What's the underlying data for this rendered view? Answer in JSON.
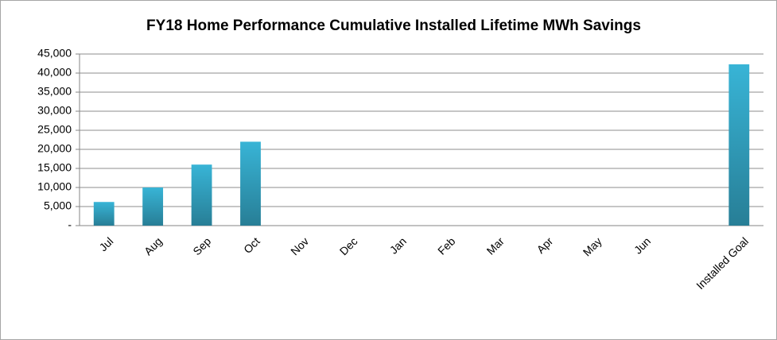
{
  "chart_data": {
    "type": "bar",
    "title": "FY18 Home Performance Cumulative Installed Lifetime MWh Savings",
    "categories": [
      "Jul",
      "Aug",
      "Sep",
      "Oct",
      "Nov",
      "Dec",
      "Jan",
      "Feb",
      "Mar",
      "Apr",
      "May",
      "Jun",
      null,
      "Installed Goal"
    ],
    "values": [
      6200,
      10000,
      16000,
      22000,
      null,
      null,
      null,
      null,
      null,
      null,
      null,
      null,
      null,
      42300
    ],
    "color": "#38b4d6",
    "ylim": [
      0,
      45000
    ],
    "yticks": [
      {
        "value": 0,
        "label": "-"
      },
      {
        "value": 5000,
        "label": "5,000"
      },
      {
        "value": 10000,
        "label": "10,000"
      },
      {
        "value": 15000,
        "label": "15,000"
      },
      {
        "value": 20000,
        "label": "20,000"
      },
      {
        "value": 25000,
        "label": "25,000"
      },
      {
        "value": 30000,
        "label": "30,000"
      },
      {
        "value": 35000,
        "label": "35,000"
      },
      {
        "value": 40000,
        "label": "40,000"
      },
      {
        "value": 45000,
        "label": "45,000"
      }
    ],
    "grid": true
  }
}
